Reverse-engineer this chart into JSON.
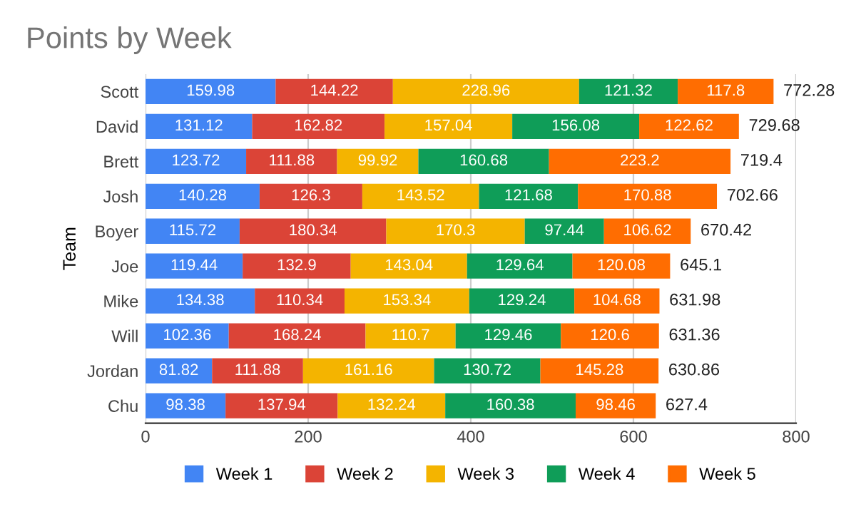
{
  "chart_data": {
    "type": "bar",
    "orientation": "horizontal",
    "stacked": true,
    "title": "Points by Week",
    "ylabel": "Team",
    "categories": [
      "Scott",
      "David",
      "Brett",
      "Josh",
      "Boyer",
      "Joe",
      "Mike",
      "Will",
      "Jordan",
      "Chu"
    ],
    "series": [
      {
        "name": "Week 1",
        "color": "#4285f4",
        "values": [
          159.98,
          131.12,
          123.72,
          140.28,
          115.72,
          119.44,
          134.38,
          102.36,
          81.82,
          98.38
        ]
      },
      {
        "name": "Week 2",
        "color": "#db4437",
        "values": [
          144.22,
          162.82,
          111.88,
          126.3,
          180.34,
          132.9,
          110.34,
          168.24,
          111.88,
          137.94
        ]
      },
      {
        "name": "Week 3",
        "color": "#f4b400",
        "values": [
          228.96,
          157.04,
          99.92,
          143.52,
          170.3,
          143.04,
          153.34,
          110.7,
          161.16,
          132.24
        ]
      },
      {
        "name": "Week 4",
        "color": "#0f9d58",
        "values": [
          121.32,
          156.08,
          160.68,
          121.68,
          97.44,
          129.64,
          129.24,
          129.46,
          130.72,
          160.38
        ]
      },
      {
        "name": "Week 5",
        "color": "#ff6d01",
        "values": [
          117.8,
          122.62,
          223.2,
          170.88,
          106.62,
          120.08,
          104.68,
          120.6,
          145.28,
          98.46
        ]
      }
    ],
    "totals": [
      "772.28",
      "729.68",
      "719.4",
      "702.66",
      "670.42",
      "645.1",
      "631.98",
      "631.36",
      "630.86",
      "627.4"
    ],
    "data_labels": true,
    "xlim": [
      0,
      800
    ],
    "xticks": [
      0,
      200,
      400,
      600,
      800
    ],
    "grid": "x",
    "legend": "bottom"
  }
}
